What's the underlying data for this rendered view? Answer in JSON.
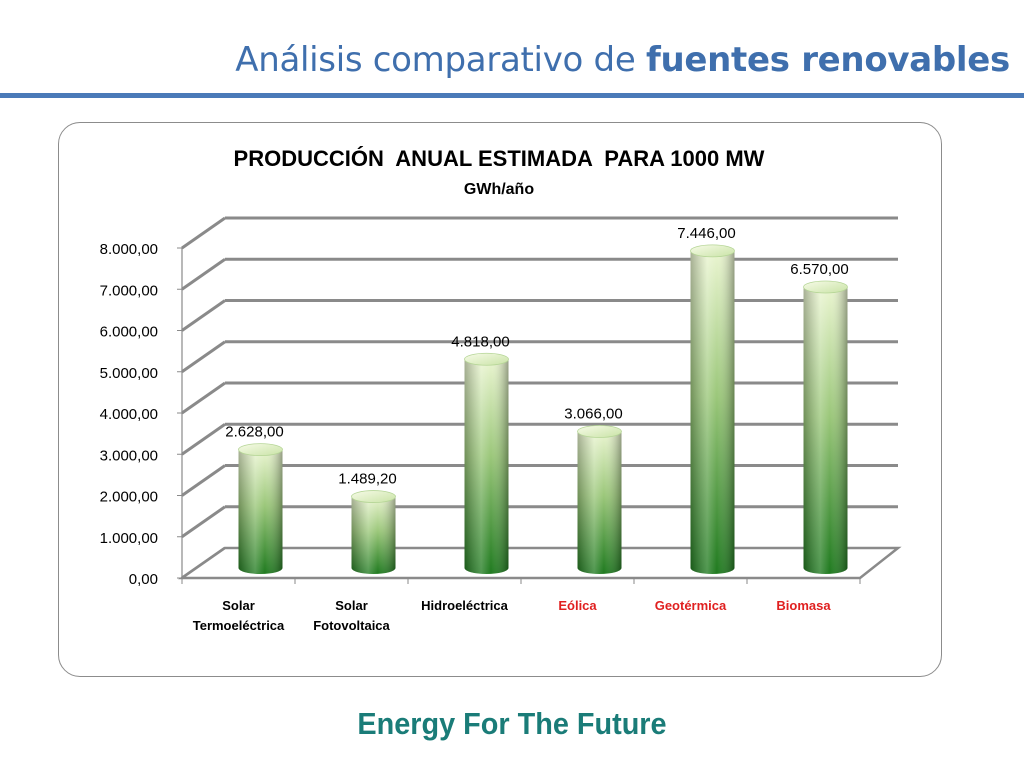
{
  "slide": {
    "title_regular": "Análisis comparativo de ",
    "title_bold": "fuentes renovables",
    "footer": "Energy For The Future"
  },
  "colors": {
    "accent_blue": "#4a7ab8",
    "footer_teal": "#1a7c78",
    "bar_green_light": "#eaf5d0",
    "bar_green_dark": "#1f7a1f",
    "highlight_red": "#e02020"
  },
  "chart_data": {
    "type": "bar",
    "title": "PRODUCCIÓN  ANUAL ESTIMADA  PARA 1000 MW",
    "subtitle": "GWh/año",
    "categories": [
      "Solar Termoeléctrica",
      "Solar Fotovoltaica",
      "Hidroeléctrica",
      "Eólica",
      "Geotérmica",
      "Biomasa"
    ],
    "category_lines": [
      [
        "Solar",
        "Termoeléctrica"
      ],
      [
        "Solar",
        "Fotovoltaica"
      ],
      [
        "Hidroeléctrica"
      ],
      [
        "Eólica"
      ],
      [
        "Geotérmica"
      ],
      [
        "Biomasa"
      ]
    ],
    "category_highlighted": [
      false,
      false,
      false,
      true,
      true,
      true
    ],
    "values": [
      2628.0,
      1489.2,
      4818.0,
      3066.0,
      7446.0,
      6570.0
    ],
    "value_labels": [
      "2.628,00",
      "1.489,20",
      "4.818,00",
      "3.066,00",
      "7.446,00",
      "6.570,00"
    ],
    "y_ticks": [
      0,
      1000,
      2000,
      3000,
      4000,
      5000,
      6000,
      7000,
      8000
    ],
    "y_tick_labels": [
      "0,00",
      "1.000,00",
      "2.000,00",
      "3.000,00",
      "4.000,00",
      "5.000,00",
      "6.000,00",
      "7.000,00",
      "8.000,00"
    ],
    "ylim": [
      0,
      8000
    ],
    "grid": true,
    "style": "3d-cylinder"
  }
}
